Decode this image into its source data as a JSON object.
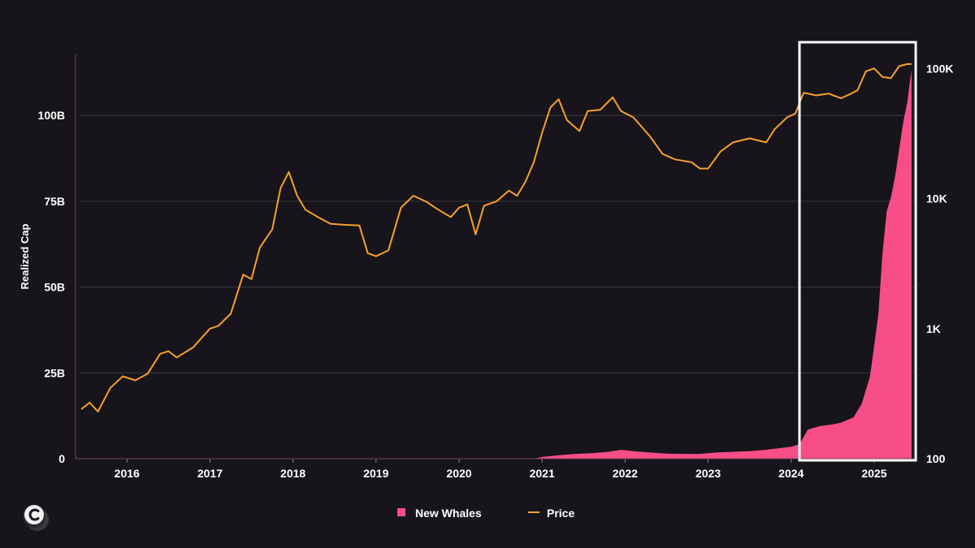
{
  "logo_icon": "copyright-c-icon",
  "chart_data": {
    "type": "area",
    "ylabel": "Realized Cap",
    "x_range": [
      2015.43,
      2025.48
    ],
    "y_left": {
      "range": [
        0,
        118
      ],
      "ticks": [
        0,
        25,
        50,
        75,
        100
      ],
      "tick_labels": [
        "0",
        "25B",
        "50B",
        "75B",
        "100B"
      ],
      "grid": true
    },
    "y_right": {
      "scale": "log",
      "range": [
        100,
        130000
      ],
      "ticks": [
        100,
        1000,
        10000,
        100000
      ],
      "tick_labels": [
        "100",
        "1K",
        "10K",
        "100K"
      ]
    },
    "x_ticks": [
      2016,
      2017,
      2018,
      2019,
      2020,
      2021,
      2022,
      2023,
      2024,
      2025
    ],
    "x_tick_labels": [
      "2016",
      "2017",
      "2018",
      "2019",
      "2020",
      "2021",
      "2022",
      "2023",
      "2024",
      "2025"
    ],
    "legend": {
      "placement": "bottom-center"
    },
    "highlight": {
      "x_range": [
        2024.1,
        2025.5
      ]
    },
    "series": [
      {
        "name": "New Whales",
        "kind": "area",
        "axis": "left",
        "color": "#f74e87",
        "x": [
          2015.45,
          2020.9,
          2021.0,
          2021.2,
          2021.4,
          2021.6,
          2021.8,
          2021.95,
          2022.1,
          2022.3,
          2022.5,
          2022.7,
          2022.9,
          2023.1,
          2023.3,
          2023.5,
          2023.7,
          2023.9,
          2024.0,
          2024.1,
          2024.2,
          2024.35,
          2024.5,
          2024.6,
          2024.75,
          2024.85,
          2024.95,
          2025.05,
          2025.1,
          2025.15,
          2025.2,
          2025.25,
          2025.3,
          2025.35,
          2025.4,
          2025.43,
          2025.45
        ],
        "values": [
          0,
          0,
          0.5,
          1.0,
          1.4,
          1.6,
          2.0,
          2.6,
          2.2,
          1.8,
          1.5,
          1.4,
          1.4,
          1.8,
          2.0,
          2.2,
          2.6,
          3.2,
          3.5,
          4.2,
          8.5,
          9.5,
          10.0,
          10.5,
          12.0,
          16.0,
          24.0,
          42.0,
          60.0,
          72.0,
          76.0,
          82.0,
          90.0,
          98.0,
          104.0,
          110.0,
          113.0
        ]
      },
      {
        "name": "Price",
        "kind": "line",
        "axis": "right",
        "color": "#f7a02c",
        "x": [
          2015.45,
          2015.55,
          2015.65,
          2015.8,
          2015.95,
          2016.1,
          2016.25,
          2016.4,
          2016.5,
          2016.6,
          2016.8,
          2017.0,
          2017.1,
          2017.25,
          2017.4,
          2017.5,
          2017.6,
          2017.75,
          2017.85,
          2017.95,
          2018.05,
          2018.15,
          2018.3,
          2018.45,
          2018.6,
          2018.8,
          2018.9,
          2019.0,
          2019.15,
          2019.3,
          2019.45,
          2019.6,
          2019.75,
          2019.9,
          2020.0,
          2020.1,
          2020.2,
          2020.3,
          2020.45,
          2020.6,
          2020.7,
          2020.8,
          2020.9,
          2021.0,
          2021.1,
          2021.2,
          2021.3,
          2021.45,
          2021.55,
          2021.7,
          2021.85,
          2021.95,
          2022.1,
          2022.3,
          2022.45,
          2022.6,
          2022.8,
          2022.9,
          2023.0,
          2023.15,
          2023.3,
          2023.5,
          2023.7,
          2023.8,
          2023.95,
          2024.05,
          2024.15,
          2024.3,
          2024.45,
          2024.6,
          2024.7,
          2024.8,
          2024.9,
          2025.0,
          2025.1,
          2025.2,
          2025.3,
          2025.4,
          2025.45
        ],
        "values": [
          240,
          270,
          230,
          350,
          430,
          400,
          450,
          640,
          670,
          600,
          720,
          1000,
          1050,
          1300,
          2600,
          2400,
          4200,
          5800,
          12000,
          16000,
          10500,
          8200,
          7200,
          6400,
          6300,
          6200,
          3800,
          3600,
          4000,
          8500,
          10500,
          9500,
          8200,
          7200,
          8500,
          9000,
          5300,
          8800,
          9500,
          11500,
          10500,
          13500,
          19000,
          32000,
          50000,
          58000,
          40000,
          33000,
          47000,
          48000,
          60000,
          47000,
          42000,
          30000,
          22000,
          20000,
          19000,
          17000,
          17000,
          23000,
          27000,
          29000,
          27000,
          34000,
          42000,
          45000,
          65000,
          62000,
          64000,
          59000,
          63000,
          68000,
          95000,
          100000,
          86000,
          84000,
          104000,
          108000,
          108000
        ]
      }
    ]
  }
}
